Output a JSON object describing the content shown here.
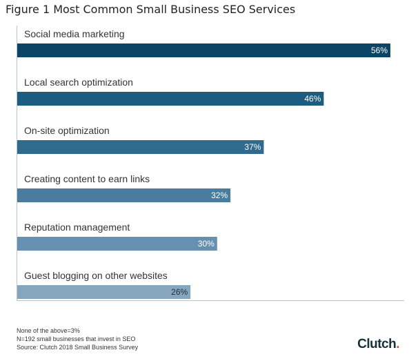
{
  "figure_caption": "Figure 1 Most Common Small Business SEO Services",
  "chart_data": {
    "type": "bar",
    "orientation": "horizontal",
    "title": "",
    "xlabel": "",
    "ylabel": "",
    "categories": [
      "Social media marketing",
      "Local search optimization",
      "On-site optimization",
      "Creating content to earn links",
      "Reputation management",
      "Guest blogging on other websites"
    ],
    "values": [
      56,
      46,
      37,
      32,
      30,
      26
    ],
    "value_labels": [
      "56%",
      "46%",
      "37%",
      "32%",
      "30%",
      "26%"
    ],
    "colors": [
      "#0c4466",
      "#1c5c80",
      "#2f6a8f",
      "#4a7c9e",
      "#6690b0",
      "#86a6be"
    ],
    "xlim": [
      0,
      56
    ],
    "grid": false,
    "legend": "none"
  },
  "footnotes": [
    "None of the above=3%",
    "N=192 small businesses that invest in SEO",
    "Source: Clutch 2018 Small Business Survey"
  ],
  "brand": {
    "name": "Clutch",
    "dot": ".",
    "dot_color": "#e8502f"
  }
}
